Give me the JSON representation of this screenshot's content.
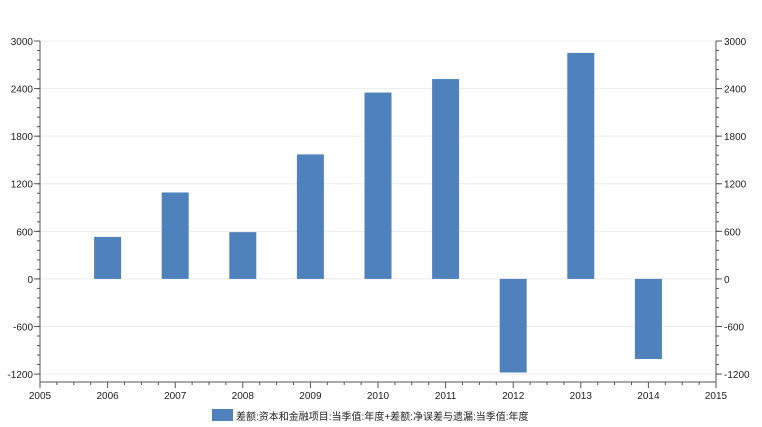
{
  "chart_data": {
    "type": "bar",
    "title": "",
    "xlabel": "",
    "ylabel": "",
    "x": [
      2006,
      2007,
      2008,
      2009,
      2010,
      2011,
      2012,
      2013,
      2014
    ],
    "series": [
      {
        "name": "差额:资本和金融项目:当季值:年度+差额:净误差与遗漏:当季值:年度",
        "color": "#4f81bd",
        "values": [
          530,
          1090,
          590,
          1570,
          2350,
          2520,
          1180,
          2850,
          1010
        ],
        "signs": [
          1,
          1,
          1,
          1,
          1,
          1,
          -1,
          1,
          -1
        ]
      }
    ],
    "xlim": [
      2005,
      2015
    ],
    "xticks": [
      "2005",
      "2006",
      "2007",
      "2008",
      "2009",
      "2010",
      "2011",
      "2012",
      "2013",
      "2014",
      "2015"
    ],
    "ylim": [
      -1300,
      3000
    ],
    "yticks": [
      "3000",
      "2400",
      "1800",
      "1200",
      "600",
      "0",
      "-600",
      "-1200"
    ],
    "ytick_values": [
      3000,
      2400,
      1800,
      1200,
      600,
      0,
      -600,
      -1200
    ],
    "right_axis": true,
    "grid": true,
    "legend": "bottom"
  }
}
